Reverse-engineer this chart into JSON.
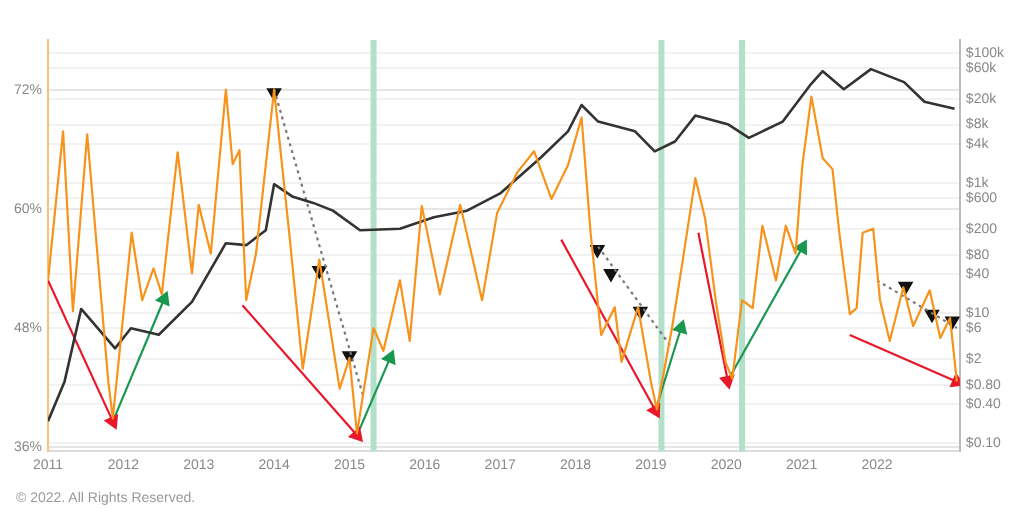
{
  "chart_data": {
    "type": "line",
    "xlim": [
      2011,
      2023.1
    ],
    "xticks": [
      2011,
      2012,
      2013,
      2014,
      2015,
      2016,
      2017,
      2018,
      2019,
      2020,
      2021,
      2022
    ],
    "ylim": [
      35.6,
      77
    ],
    "yticks": [
      {
        "value": 36,
        "label": "36%"
      },
      {
        "value": 48,
        "label": "48%"
      },
      {
        "value": 60,
        "label": "60%"
      },
      {
        "value": 72,
        "label": "72%"
      }
    ],
    "y2lim": [
      0.076,
      160000
    ],
    "log": "y2",
    "y2ticks": [
      {
        "value": 0.1,
        "label": "$0.10"
      },
      {
        "value": 0.4,
        "label": "$0.40"
      },
      {
        "value": 0.8,
        "label": "$0.80"
      },
      {
        "value": 2,
        "label": "$2"
      },
      {
        "value": 6,
        "label": "$6"
      },
      {
        "value": 10,
        "label": "$10"
      },
      {
        "value": 40,
        "label": "$40"
      },
      {
        "value": 80,
        "label": "$80"
      },
      {
        "value": 200,
        "label": "$200"
      },
      {
        "value": 600,
        "label": "$600"
      },
      {
        "value": 1000,
        "label": "$1k"
      },
      {
        "value": 4000,
        "label": "$4k"
      },
      {
        "value": 8000,
        "label": "$8k"
      },
      {
        "value": 20000,
        "label": "$20k"
      },
      {
        "value": 60000,
        "label": "$60k"
      },
      {
        "value": 100000,
        "label": "$100k"
      }
    ],
    "grid": "y",
    "legend": false,
    "bands": [
      {
        "axis": "x",
        "from": 2015.28,
        "to": 2015.36,
        "color": "#b3e0c8"
      },
      {
        "axis": "x",
        "from": 2019.1,
        "to": 2019.18,
        "color": "#b3e0c8"
      },
      {
        "axis": "x",
        "from": 2020.17,
        "to": 2020.25,
        "color": "#b3e0c8"
      }
    ],
    "annotations": [
      "© 2022. All Rights Reserved."
    ],
    "series": [
      {
        "color": "#f7931a",
        "x": [
          2011,
          2011.2,
          2011.33,
          2011.52,
          2011.8,
          2011.86,
          2012.11,
          2012.25,
          2012.4,
          2012.51,
          2012.72,
          2012.91,
          2013,
          2013.16,
          2013.36,
          2013.45,
          2013.54,
          2013.63,
          2013.76,
          2014,
          2014.2,
          2014.38,
          2014.6,
          2014.87,
          2015,
          2015.1,
          2015.32,
          2015.45,
          2015.67,
          2015.8,
          2015.96,
          2016.2,
          2016.47,
          2016.76,
          2016.96,
          2017.23,
          2017.45,
          2017.68,
          2017.9,
          2018.08,
          2018.2,
          2018.34,
          2018.52,
          2018.61,
          2018.83,
          2019,
          2019.08,
          2019.28,
          2019.41,
          2019.59,
          2019.72,
          2019.86,
          2019.99,
          2020.08,
          2020.21,
          2020.35,
          2020.48,
          2020.66,
          2020.79,
          2020.92,
          2021.01,
          2021.13,
          2021.28,
          2021.41,
          2021.5,
          2021.64,
          2021.73,
          2021.81,
          2021.95,
          2022.04,
          2022.17,
          2022.35,
          2022.48,
          2022.7,
          2022.84,
          2022.97,
          2023.06
        ],
        "values": [
          52.8,
          67.8,
          49.7,
          67.5,
          42.6,
          38.9,
          57.6,
          50.8,
          54,
          51.4,
          65.7,
          53.5,
          60.4,
          55.5,
          72,
          64.5,
          65.9,
          50.8,
          55.5,
          72,
          57.6,
          43.9,
          54.9,
          41.9,
          45,
          37.4,
          48,
          45.7,
          52.8,
          46.7,
          60.3,
          51.4,
          60.4,
          50.8,
          59.6,
          63.7,
          65.8,
          61,
          64.4,
          69.2,
          57.6,
          47.3,
          50.1,
          44.6,
          50.1,
          42.6,
          39.8,
          48,
          54.2,
          63.1,
          59,
          50.8,
          44.6,
          42.9,
          50.8,
          50,
          58.3,
          52.8,
          58.3,
          55.5,
          64.4,
          71.3,
          65.1,
          64,
          57.6,
          49.4,
          50,
          57.6,
          58,
          50.8,
          46.7,
          52.1,
          48.2,
          51.8,
          47,
          49,
          42.6
        ]
      },
      {
        "color": "#333333",
        "axis": "y2",
        "x": [
          2011,
          2011.22,
          2011.44,
          2011.89,
          2012.1,
          2012.47,
          2012.91,
          2013.36,
          2013.63,
          2013.89,
          2014,
          2014.25,
          2014.52,
          2014.78,
          2015.14,
          2015.67,
          2016.12,
          2016.56,
          2017,
          2017.54,
          2017.9,
          2018.08,
          2018.3,
          2018.79,
          2019.05,
          2019.32,
          2019.59,
          2020.03,
          2020.3,
          2020.75,
          2021.11,
          2021.28,
          2021.56,
          2021.92,
          2022.36,
          2022.63,
          2023.03
        ],
        "values": [
          0.22,
          0.9,
          11.7,
          2.9,
          5.9,
          4.7,
          15,
          120,
          112,
          190,
          970,
          620,
          500,
          380,
          190,
          200,
          300,
          380,
          700,
          2500,
          6300,
          16000,
          8900,
          6300,
          3100,
          4400,
          11000,
          8000,
          5000,
          8900,
          32000,
          53000,
          28000,
          57000,
          36000,
          18000,
          14000
        ]
      },
      {
        "color": "#e8182b",
        "marker": "triangle",
        "x": [
          2011,
          2011.86
        ],
        "values": [
          52.8,
          38.6
        ]
      },
      {
        "color": "#1a9850",
        "marker": "triangle",
        "x": [
          2011.86,
          2012.54
        ],
        "values": [
          38.6,
          50.9
        ]
      },
      {
        "color": "#e8182b",
        "marker": "triangle",
        "x": [
          2013.58,
          2015.1
        ],
        "values": [
          50.3,
          37.2
        ]
      },
      {
        "color": "#1a9850",
        "marker": "triangle",
        "x": [
          2015.1,
          2015.54
        ],
        "values": [
          37.2,
          45
        ]
      },
      {
        "color": "#e8182b",
        "marker": "triangle",
        "x": [
          2017.81,
          2019.06
        ],
        "values": [
          56.9,
          39.7
        ]
      },
      {
        "color": "#1a9850",
        "marker": "triangle",
        "x": [
          2019.06,
          2019.4
        ],
        "values": [
          39.7,
          48
        ]
      },
      {
        "color": "#e8182b",
        "marker": "triangle",
        "x": [
          2019.63,
          2020.02
        ],
        "values": [
          57.6,
          42.7
        ]
      },
      {
        "color": "#1a9850",
        "marker": "triangle",
        "x": [
          2020.02,
          2021.01
        ],
        "values": [
          42.7,
          56.1
        ]
      },
      {
        "color": "#e8182b",
        "marker": "triangle",
        "x": [
          2021.64,
          2023.06
        ],
        "values": [
          47.3,
          42.6
        ]
      },
      {
        "color": "#777777",
        "line_style": "dotted",
        "x": [
          2014,
          2015.18
        ],
        "values": [
          72,
          41.2
        ]
      },
      {
        "color": "#777777",
        "line_style": "dotted",
        "x": [
          2018.3,
          2019.28
        ],
        "values": [
          56.2,
          46
        ]
      },
      {
        "color": "#777777",
        "line_style": "dotted",
        "x": [
          2022,
          2023.06
        ],
        "values": [
          52.8,
          48
        ]
      },
      {
        "type": "scatter",
        "color": "#111111",
        "marker": "triangle",
        "x": [
          2014,
          2014.6,
          2015,
          2018.29,
          2018.47,
          2018.86,
          2022.38,
          2022.73,
          2023
        ],
        "values": [
          71.7,
          53.8,
          45.2,
          55.9,
          53.5,
          49.7,
          52.2,
          49.4,
          48.7
        ]
      }
    ]
  }
}
